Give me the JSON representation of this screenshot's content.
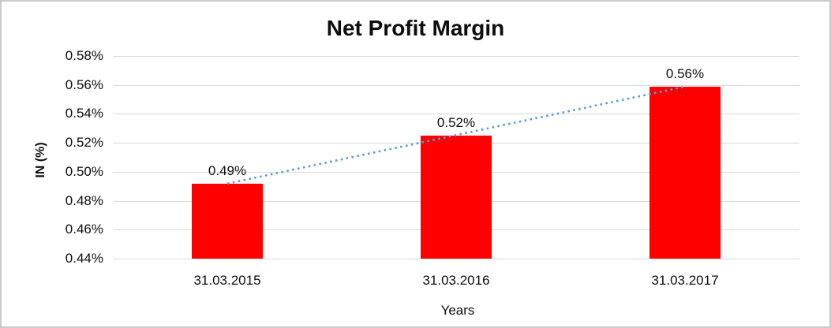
{
  "chart_data": {
    "type": "bar",
    "title": "Net Profit Margin",
    "xlabel": "Years",
    "ylabel": "IN (%)",
    "categories": [
      "31.03.2015",
      "31.03.2016",
      "31.03.2017"
    ],
    "values": [
      0.492,
      0.525,
      0.559
    ],
    "data_labels": [
      "0.49%",
      "0.52%",
      "0.56%"
    ],
    "ylim": [
      0.44,
      0.58
    ],
    "ytick_step": 0.02,
    "ytick_labels": [
      "0.44%",
      "0.46%",
      "0.48%",
      "0.50%",
      "0.52%",
      "0.54%",
      "0.56%",
      "0.58%"
    ],
    "grid": true,
    "legend_position": "none",
    "bar_color": "#ff0000",
    "gridline_color": "#d9d9d9",
    "text_color": "#0d0d0d",
    "trendline": {
      "type": "linear",
      "style": "dotted",
      "color": "#5b9bd5"
    }
  }
}
